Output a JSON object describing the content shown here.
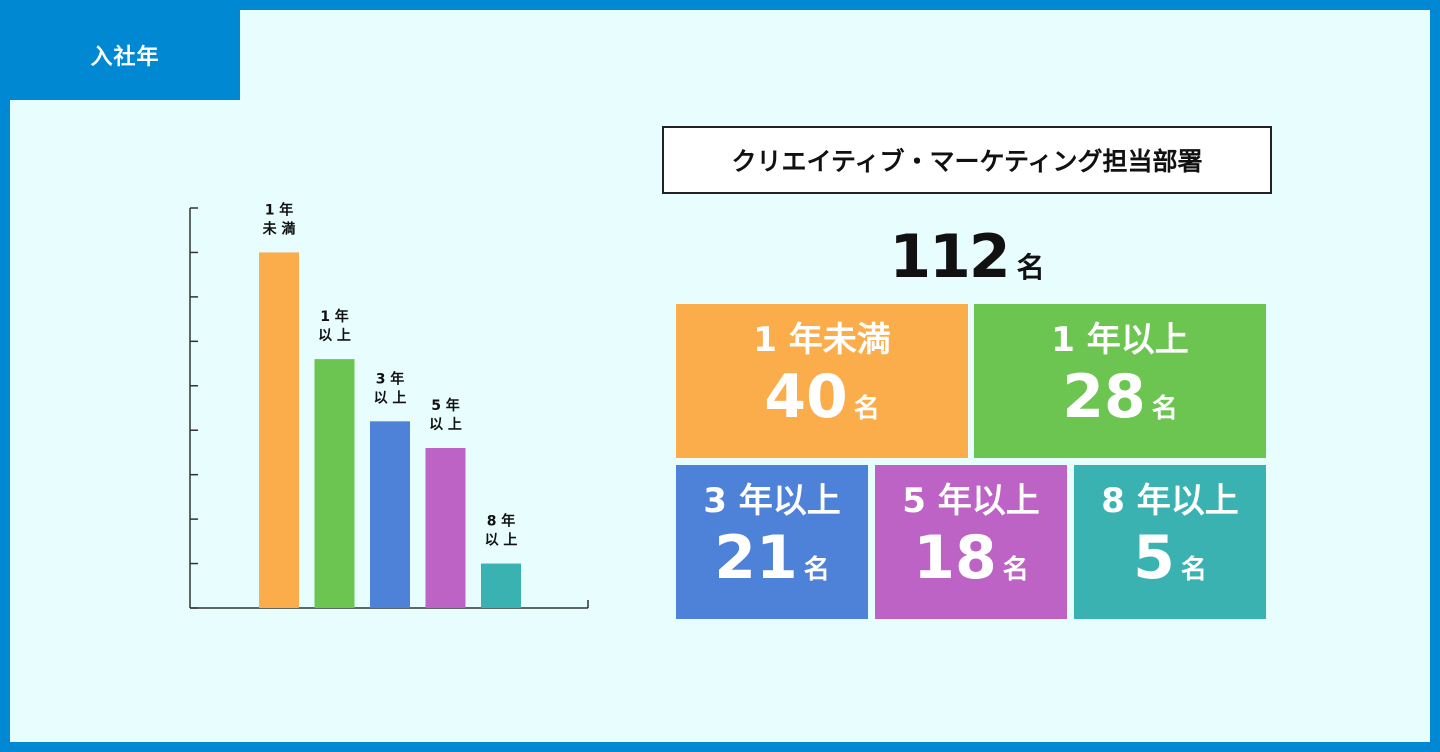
{
  "header": {
    "tag": "入社年"
  },
  "department": "クリエイティブ・マーケティング担当部署",
  "total": {
    "value": "112",
    "unit": "名"
  },
  "tiles": [
    {
      "category": "1 年未満",
      "value": "40",
      "unit": "名",
      "color": "#fbad4b"
    },
    {
      "category": "1 年以上",
      "value": "28",
      "unit": "名",
      "color": "#6cc551"
    },
    {
      "category": "3 年以上",
      "value": "21",
      "unit": "名",
      "color": "#4e81d8"
    },
    {
      "category": "5 年以上",
      "value": "18",
      "unit": "名",
      "color": "#bd63c5"
    },
    {
      "category": "8 年以上",
      "value": "5",
      "unit": "名",
      "color": "#3bb2b2"
    }
  ],
  "chart_data": {
    "type": "bar",
    "categories": [
      "1 年未満",
      "1 年以上",
      "3 年以上",
      "5 年以上",
      "8 年以上"
    ],
    "labels": [
      [
        "1 年",
        "未 満"
      ],
      [
        "1 年",
        "以 上"
      ],
      [
        "3 年",
        "以 上"
      ],
      [
        "5 年",
        "以 上"
      ],
      [
        "8 年",
        "以 上"
      ]
    ],
    "values": [
      40,
      28,
      21,
      18,
      5
    ],
    "colors": [
      "#fbad4b",
      "#6cc551",
      "#4e81d8",
      "#bd63c5",
      "#3bb2b2"
    ],
    "ylim": [
      0,
      45
    ],
    "yticks": [
      0,
      5,
      10,
      15,
      20,
      25,
      30,
      35,
      40,
      45
    ],
    "tick_labels_shown": false,
    "grid": false
  }
}
